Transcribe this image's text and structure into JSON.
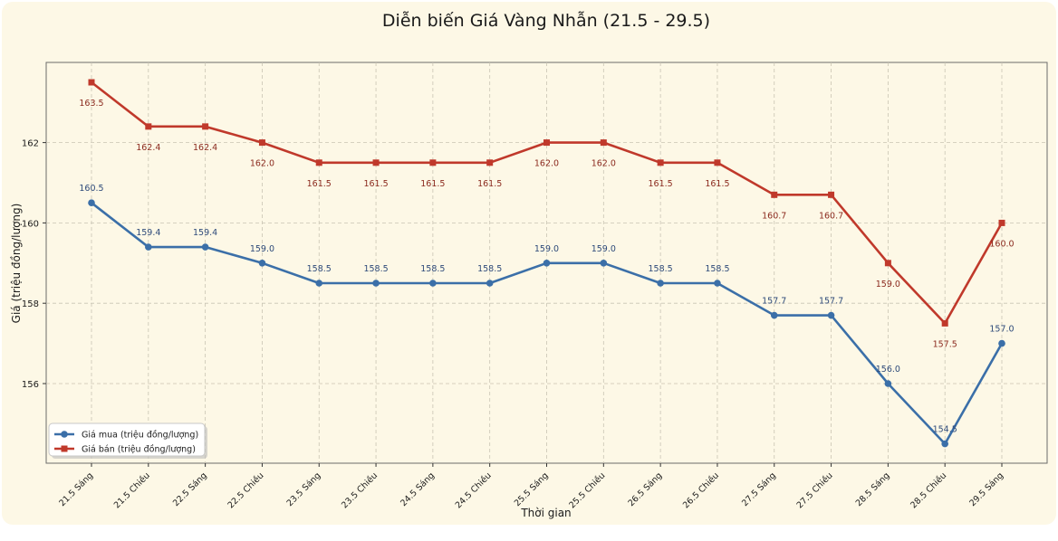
{
  "chart_data": {
    "type": "line",
    "title": "Diễn biến Giá Vàng Nhẫn (21.5 - 29.5)",
    "xlabel": "Thời gian",
    "ylabel": "Giá (triệu đồng/lượng)",
    "categories": [
      "21.5 Sáng",
      "21.5 Chiều",
      "22.5 Sáng",
      "22.5 Chiều",
      "23.5 Sáng",
      "23.5 Chiều",
      "24.5 Sáng",
      "24.5 Chiều",
      "25.5 Sáng",
      "25.5 Chiều",
      "26.5 Sáng",
      "26.5 Chiều",
      "27.5 Sáng",
      "27.5 Chiều",
      "28.5 Sáng",
      "28.5 Chiều",
      "29.5 Sáng"
    ],
    "series": [
      {
        "name": "Giá mua (triệu đồng/lượng)",
        "color": "#3b6fa8",
        "marker": "circle",
        "values": [
          160.5,
          159.4,
          159.4,
          159.0,
          158.5,
          158.5,
          158.5,
          158.5,
          159.0,
          159.0,
          158.5,
          158.5,
          157.7,
          157.7,
          156.0,
          154.5,
          157.0
        ]
      },
      {
        "name": "Giá bán (triệu đồng/lượng)",
        "color": "#c0392b",
        "marker": "square",
        "values": [
          163.5,
          162.4,
          162.4,
          162.0,
          161.5,
          161.5,
          161.5,
          161.5,
          162.0,
          162.0,
          161.5,
          161.5,
          160.7,
          160.7,
          159.0,
          157.5,
          160.0
        ]
      }
    ],
    "ylim": [
      154.0,
      164.0
    ],
    "yticks": [
      156,
      158,
      160,
      162
    ],
    "grid": true,
    "legend_position": "bottom-left",
    "background_color": "#fdf8e6"
  }
}
